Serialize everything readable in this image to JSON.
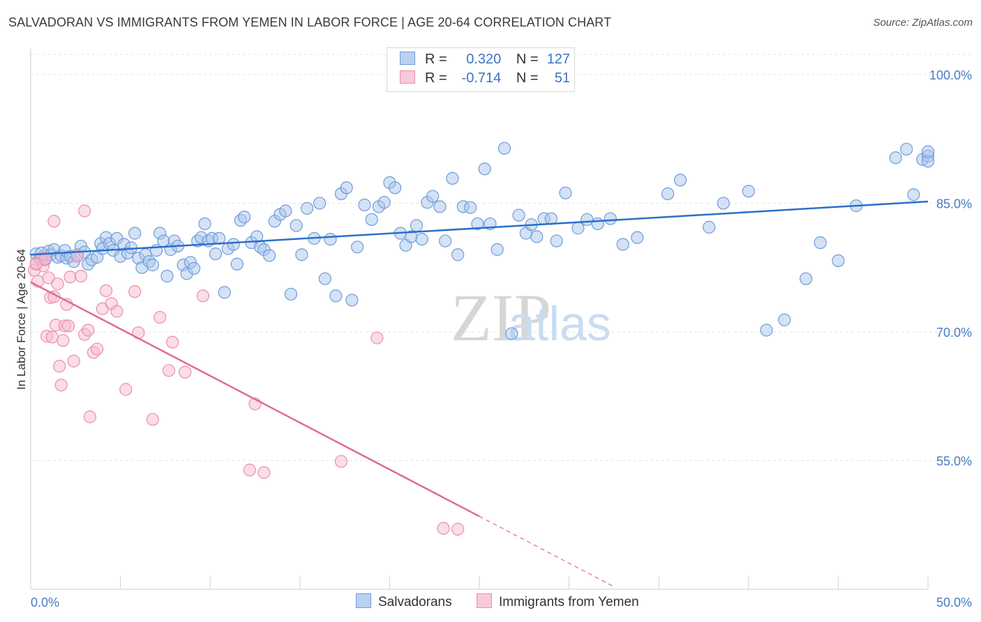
{
  "title": "SALVADORAN VS IMMIGRANTS FROM YEMEN IN LABOR FORCE | AGE 20-64 CORRELATION CHART",
  "source": "Source: ZipAtlas.com",
  "watermark": {
    "zip": "ZIP",
    "atlas": "atlas"
  },
  "legend": {
    "rows": [
      {
        "r_label": "R =",
        "r_value": "0.320",
        "n_label": "N =",
        "n_value": "127"
      },
      {
        "r_label": "R =",
        "r_value": "-0.714",
        "n_label": "N =",
        "n_value": "51"
      }
    ]
  },
  "bottom_legend": [
    "Salvadorans",
    "Immigrants from Yemen"
  ],
  "colors": {
    "blue_fill": "#a9c6ec",
    "blue_stroke": "#6f9bd8",
    "blue_line": "#2b6fcb",
    "pink_fill": "#f5bccd",
    "pink_stroke": "#e98fac",
    "pink_line": "#e06a97",
    "tick_text": "#4a7bc4",
    "grid": "#e3e3e3"
  },
  "chart_data": {
    "type": "scatter",
    "title": "SALVADORAN VS IMMIGRANTS FROM YEMEN IN LABOR FORCE | AGE 20-64 CORRELATION CHART",
    "xlabel": "",
    "ylabel": "In Labor Force | Age 20-64",
    "xlim": [
      0,
      50
    ],
    "ylim": [
      40,
      103
    ],
    "x_tick_labels": [
      "0.0%",
      "50.0%"
    ],
    "y_ticks": [
      55,
      70,
      85,
      100
    ],
    "y_tick_labels": [
      "55.0%",
      "70.0%",
      "85.0%",
      "100.0%"
    ],
    "grid": true,
    "legend_position": "top-center",
    "series": [
      {
        "name": "Salvadorans",
        "color": "#6f9bd8",
        "trend": {
          "x": [
            0,
            50
          ],
          "y": [
            79.0,
            85.2
          ]
        },
        "points": [
          [
            0.3,
            79.1
          ],
          [
            0.5,
            78.5
          ],
          [
            0.6,
            79.2
          ],
          [
            0.8,
            78.4
          ],
          [
            1.0,
            79.4
          ],
          [
            1.1,
            79.0
          ],
          [
            1.3,
            79.6
          ],
          [
            1.5,
            78.7
          ],
          [
            1.7,
            78.9
          ],
          [
            1.9,
            79.5
          ],
          [
            2.0,
            78.6
          ],
          [
            2.2,
            78.8
          ],
          [
            2.4,
            78.2
          ],
          [
            2.6,
            79.0
          ],
          [
            2.8,
            80.0
          ],
          [
            3.0,
            79.3
          ],
          [
            3.2,
            77.9
          ],
          [
            3.4,
            78.4
          ],
          [
            3.7,
            78.7
          ],
          [
            3.9,
            80.3
          ],
          [
            4.0,
            79.7
          ],
          [
            4.2,
            81.0
          ],
          [
            4.4,
            80.3
          ],
          [
            4.6,
            79.5
          ],
          [
            4.8,
            80.9
          ],
          [
            5.0,
            78.8
          ],
          [
            5.2,
            80.2
          ],
          [
            5.4,
            79.2
          ],
          [
            5.6,
            79.8
          ],
          [
            5.8,
            81.5
          ],
          [
            6.0,
            78.6
          ],
          [
            6.2,
            77.5
          ],
          [
            6.4,
            79.0
          ],
          [
            6.6,
            78.2
          ],
          [
            6.8,
            77.8
          ],
          [
            7.0,
            79.5
          ],
          [
            7.2,
            81.5
          ],
          [
            7.4,
            80.6
          ],
          [
            7.6,
            76.5
          ],
          [
            7.8,
            79.6
          ],
          [
            8.0,
            80.6
          ],
          [
            8.2,
            80.0
          ],
          [
            8.5,
            77.8
          ],
          [
            8.7,
            76.8
          ],
          [
            8.9,
            78.1
          ],
          [
            9.1,
            77.4
          ],
          [
            9.3,
            80.6
          ],
          [
            9.5,
            81.0
          ],
          [
            9.7,
            82.6
          ],
          [
            9.9,
            80.6
          ],
          [
            10.1,
            80.9
          ],
          [
            10.3,
            79.1
          ],
          [
            10.5,
            80.9
          ],
          [
            10.8,
            74.6
          ],
          [
            11.0,
            79.7
          ],
          [
            11.3,
            80.2
          ],
          [
            11.5,
            77.9
          ],
          [
            11.7,
            83.0
          ],
          [
            11.9,
            83.4
          ],
          [
            12.3,
            80.4
          ],
          [
            12.6,
            81.1
          ],
          [
            12.8,
            79.9
          ],
          [
            13.0,
            79.6
          ],
          [
            13.3,
            78.9
          ],
          [
            13.6,
            82.9
          ],
          [
            13.9,
            83.7
          ],
          [
            14.2,
            84.1
          ],
          [
            14.5,
            74.4
          ],
          [
            14.8,
            82.4
          ],
          [
            15.1,
            79.0
          ],
          [
            15.4,
            84.4
          ],
          [
            15.8,
            80.9
          ],
          [
            16.1,
            85.0
          ],
          [
            16.4,
            76.2
          ],
          [
            16.7,
            80.8
          ],
          [
            17.0,
            74.2
          ],
          [
            17.3,
            86.1
          ],
          [
            17.6,
            86.8
          ],
          [
            17.9,
            73.7
          ],
          [
            18.2,
            79.9
          ],
          [
            18.6,
            84.8
          ],
          [
            19.0,
            83.1
          ],
          [
            19.4,
            84.6
          ],
          [
            19.7,
            85.1
          ],
          [
            20.0,
            87.4
          ],
          [
            20.3,
            86.8
          ],
          [
            20.6,
            81.5
          ],
          [
            20.9,
            80.1
          ],
          [
            21.2,
            81.1
          ],
          [
            21.5,
            82.4
          ],
          [
            21.8,
            80.8
          ],
          [
            22.1,
            85.1
          ],
          [
            22.4,
            85.8
          ],
          [
            22.8,
            84.6
          ],
          [
            23.1,
            80.6
          ],
          [
            23.5,
            87.9
          ],
          [
            23.8,
            79.0
          ],
          [
            24.1,
            84.6
          ],
          [
            24.5,
            84.5
          ],
          [
            24.9,
            82.6
          ],
          [
            25.3,
            89.0
          ],
          [
            25.6,
            82.6
          ],
          [
            26.0,
            79.6
          ],
          [
            26.4,
            91.4
          ],
          [
            26.8,
            69.8
          ],
          [
            27.2,
            83.6
          ],
          [
            27.6,
            81.5
          ],
          [
            27.9,
            82.5
          ],
          [
            28.2,
            81.1
          ],
          [
            28.6,
            83.2
          ],
          [
            29.0,
            83.2
          ],
          [
            29.3,
            80.6
          ],
          [
            29.8,
            86.2
          ],
          [
            30.5,
            82.1
          ],
          [
            31.0,
            83.1
          ],
          [
            31.6,
            82.6
          ],
          [
            32.3,
            83.2
          ],
          [
            33.0,
            80.2
          ],
          [
            33.8,
            81.0
          ],
          [
            35.5,
            86.1
          ],
          [
            36.2,
            87.7
          ],
          [
            37.8,
            82.2
          ],
          [
            38.6,
            85.0
          ],
          [
            40.0,
            86.4
          ],
          [
            41.0,
            70.2
          ],
          [
            42.0,
            71.4
          ],
          [
            43.2,
            76.2
          ],
          [
            44.0,
            80.4
          ],
          [
            45.0,
            78.3
          ],
          [
            46.0,
            84.7
          ],
          [
            48.2,
            90.3
          ],
          [
            48.8,
            91.3
          ],
          [
            49.2,
            86.0
          ],
          [
            49.7,
            90.1
          ],
          [
            50.0,
            90.5
          ],
          [
            50.0,
            89.9
          ],
          [
            50.0,
            91.0
          ]
        ]
      },
      {
        "name": "Immigrants from Yemen",
        "color": "#e98fac",
        "trend": {
          "x": [
            0,
            25
          ],
          "y": [
            75.8,
            48.5
          ]
        },
        "trend_dashed": {
          "x": [
            25,
            32.5
          ],
          "y": [
            48.5,
            40.3
          ]
        },
        "points": [
          [
            0.2,
            77.2
          ],
          [
            0.3,
            78.0
          ],
          [
            0.4,
            75.9
          ],
          [
            0.6,
            78.6
          ],
          [
            0.7,
            77.7
          ],
          [
            0.8,
            78.5
          ],
          [
            0.9,
            69.5
          ],
          [
            1.0,
            76.3
          ],
          [
            1.1,
            74.0
          ],
          [
            1.2,
            69.4
          ],
          [
            1.3,
            74.1
          ],
          [
            1.4,
            70.8
          ],
          [
            1.5,
            75.6
          ],
          [
            1.6,
            66.0
          ],
          [
            1.7,
            63.8
          ],
          [
            1.8,
            69.0
          ],
          [
            1.9,
            70.7
          ],
          [
            2.0,
            73.2
          ],
          [
            2.1,
            70.7
          ],
          [
            2.2,
            76.4
          ],
          [
            2.4,
            66.6
          ],
          [
            2.6,
            78.8
          ],
          [
            2.8,
            76.5
          ],
          [
            3.0,
            69.7
          ],
          [
            3.2,
            70.2
          ],
          [
            3.3,
            60.1
          ],
          [
            3.5,
            67.6
          ],
          [
            3.7,
            68.0
          ],
          [
            4.0,
            72.7
          ],
          [
            4.2,
            74.8
          ],
          [
            4.5,
            73.3
          ],
          [
            4.8,
            72.4
          ],
          [
            5.3,
            63.3
          ],
          [
            5.8,
            74.7
          ],
          [
            6.0,
            69.9
          ],
          [
            6.8,
            59.8
          ],
          [
            7.2,
            71.7
          ],
          [
            7.7,
            65.5
          ],
          [
            7.9,
            68.8
          ],
          [
            8.6,
            65.3
          ],
          [
            9.6,
            74.2
          ],
          [
            12.2,
            53.9
          ],
          [
            12.5,
            61.6
          ],
          [
            13.0,
            53.6
          ],
          [
            17.3,
            54.9
          ],
          [
            19.3,
            69.3
          ],
          [
            23.0,
            47.1
          ],
          [
            23.8,
            47.0
          ],
          [
            3.0,
            84.1
          ],
          [
            1.3,
            82.9
          ],
          [
            0.3,
            77.9
          ]
        ]
      }
    ]
  }
}
